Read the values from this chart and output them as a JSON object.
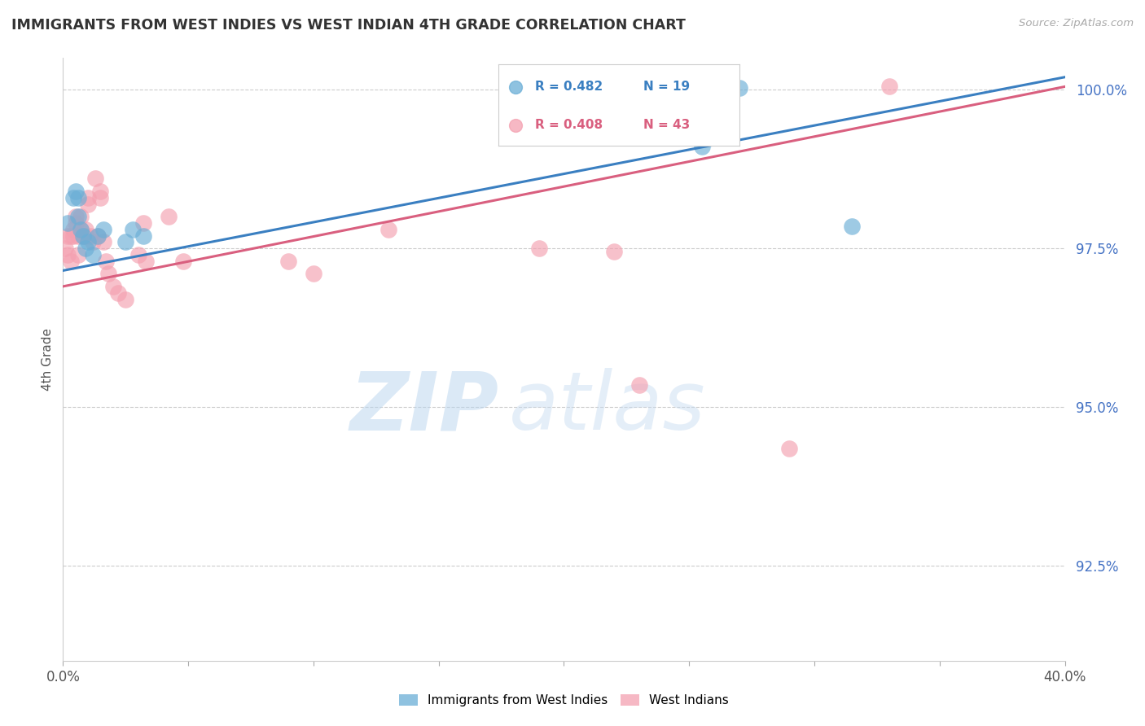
{
  "title": "IMMIGRANTS FROM WEST INDIES VS WEST INDIAN 4TH GRADE CORRELATION CHART",
  "source": "Source: ZipAtlas.com",
  "ylabel": "4th Grade",
  "xlim": [
    0.0,
    0.4
  ],
  "ylim": [
    0.91,
    1.005
  ],
  "yticks": [
    0.925,
    0.95,
    0.975,
    1.0
  ],
  "ytick_labels": [
    "92.5%",
    "95.0%",
    "97.5%",
    "100.0%"
  ],
  "xticks": [
    0.0,
    0.05,
    0.1,
    0.15,
    0.2,
    0.25,
    0.3,
    0.35,
    0.4
  ],
  "blue_R": 0.482,
  "blue_N": 19,
  "pink_R": 0.408,
  "pink_N": 43,
  "blue_color": "#6aaed6",
  "pink_color": "#f4a0b0",
  "blue_line_color": "#3a7fc1",
  "pink_line_color": "#d95f7f",
  "label_blue": "Immigrants from West Indies",
  "label_pink": "West Indians",
  "watermark_zip": "ZIP",
  "watermark_atlas": "atlas",
  "blue_x": [
    0.002,
    0.004,
    0.005,
    0.006,
    0.006,
    0.007,
    0.008,
    0.009,
    0.01,
    0.012,
    0.014,
    0.016,
    0.025,
    0.028,
    0.032,
    0.21,
    0.255,
    0.27,
    0.315
  ],
  "blue_y": [
    0.979,
    0.983,
    0.984,
    0.983,
    0.98,
    0.978,
    0.977,
    0.975,
    0.976,
    0.974,
    0.977,
    0.978,
    0.976,
    0.978,
    0.977,
    0.9945,
    0.991,
    1.0003,
    0.9785
  ],
  "pink_x": [
    0.001,
    0.002,
    0.002,
    0.003,
    0.003,
    0.004,
    0.004,
    0.005,
    0.005,
    0.006,
    0.006,
    0.007,
    0.007,
    0.008,
    0.009,
    0.009,
    0.01,
    0.01,
    0.011,
    0.012,
    0.013,
    0.014,
    0.015,
    0.015,
    0.016,
    0.017,
    0.018,
    0.02,
    0.022,
    0.025,
    0.03,
    0.032,
    0.033,
    0.042,
    0.048,
    0.09,
    0.1,
    0.13,
    0.19,
    0.22,
    0.23,
    0.29,
    0.33
  ],
  "pink_y": [
    0.975,
    0.974,
    0.977,
    0.973,
    0.977,
    0.978,
    0.977,
    0.979,
    0.98,
    0.974,
    0.977,
    0.978,
    0.98,
    0.977,
    0.978,
    0.977,
    0.983,
    0.982,
    0.977,
    0.976,
    0.986,
    0.977,
    0.983,
    0.984,
    0.976,
    0.973,
    0.971,
    0.969,
    0.968,
    0.967,
    0.974,
    0.979,
    0.973,
    0.98,
    0.973,
    0.973,
    0.971,
    0.978,
    0.975,
    0.9745,
    0.9535,
    0.9435,
    1.0005
  ],
  "blue_trendline_x": [
    0.0,
    0.4
  ],
  "blue_trendline_y": [
    0.9715,
    1.002
  ],
  "pink_trendline_x": [
    0.0,
    0.4
  ],
  "pink_trendline_y": [
    0.969,
    1.0005
  ]
}
